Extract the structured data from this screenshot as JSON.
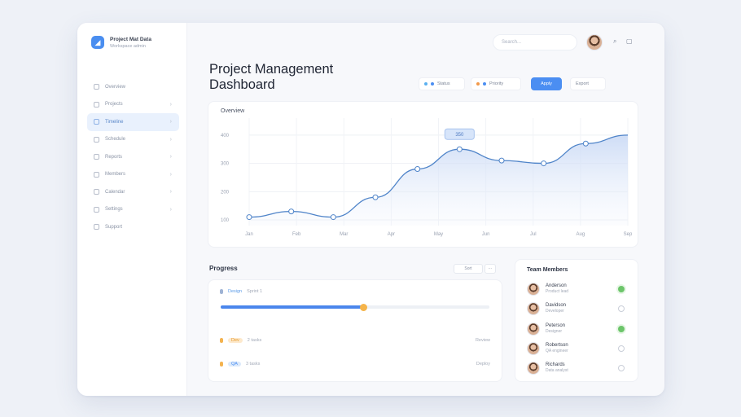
{
  "sidebar": {
    "brand_title": "Project Mat Data",
    "brand_subtitle": "Workspace admin",
    "items": [
      {
        "label": "Overview",
        "active": false,
        "chevron": false
      },
      {
        "label": "Projects",
        "active": false,
        "chevron": true
      },
      {
        "label": "Timeline",
        "active": true,
        "chevron": true
      },
      {
        "label": "Schedule",
        "active": false,
        "chevron": true
      },
      {
        "label": "Reports",
        "active": false,
        "chevron": true
      },
      {
        "label": "Members",
        "active": false,
        "chevron": true
      },
      {
        "label": "Calendar",
        "active": false,
        "chevron": true
      },
      {
        "label": "Settings",
        "active": false,
        "chevron": true
      },
      {
        "label": "Support",
        "active": false,
        "chevron": false
      }
    ]
  },
  "header": {
    "title": "Project Management Dashboard",
    "search_placeholder": "Search...",
    "filters": [
      {
        "label": "Status",
        "dot_colors": [
          "#5ab0f0",
          "#4b8ef2"
        ],
        "primary": false
      },
      {
        "label": "Priority",
        "dot_colors": [
          "#f2994a",
          "#4b8ef2"
        ],
        "primary": false
      },
      {
        "label": "Apply",
        "dot_colors": [],
        "primary": true
      },
      {
        "label": "Export",
        "dot_colors": [],
        "primary": false
      }
    ],
    "icons": [
      "search-icon",
      "bell-icon"
    ]
  },
  "chart_data": {
    "type": "area",
    "title": "Overview",
    "x_ticks": [
      "Jan",
      "Feb",
      "Mar",
      "Apr",
      "May",
      "Jun",
      "Jul",
      "Aug",
      "Sep"
    ],
    "y_ticks": [
      "400",
      "300",
      "200",
      "100"
    ],
    "ylim": [
      80,
      460
    ],
    "series": [
      {
        "values": [
          110,
          130,
          110,
          180,
          280,
          350,
          310,
          300,
          370,
          400
        ]
      }
    ],
    "tooltip_label": "350",
    "grid": true,
    "line_color": "#4f84c9"
  },
  "progress": {
    "title": "Progress",
    "sort_label": "Sort",
    "row1": {
      "label": "Design",
      "meta": "Sprint 1"
    },
    "progress_value": 0.53,
    "row2": {
      "tag": "Dev",
      "meta": "2 tasks",
      "extra": "Review"
    },
    "row3": {
      "tag": "QA",
      "meta": "3 tasks",
      "extra": "Deploy"
    },
    "colors": {
      "bar": "#4a86ec",
      "knob": "#f5b44a"
    }
  },
  "team": {
    "title": "Team Members",
    "members": [
      {
        "name": "Anderson",
        "role": "Product lead",
        "online": true
      },
      {
        "name": "Davidson",
        "role": "Developer",
        "online": false
      },
      {
        "name": "Peterson",
        "role": "Designer",
        "online": true
      },
      {
        "name": "Robertson",
        "role": "QA engineer",
        "online": false
      },
      {
        "name": "Richards",
        "role": "Data analyst",
        "online": false
      }
    ]
  }
}
